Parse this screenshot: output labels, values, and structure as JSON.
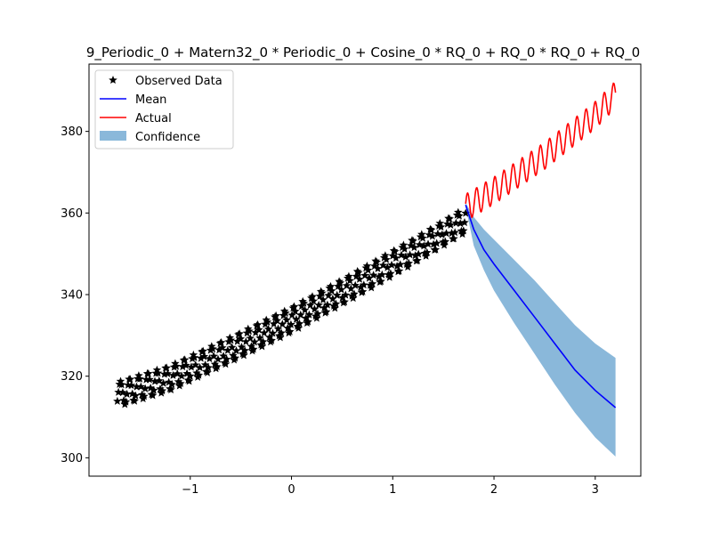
{
  "chart_data": {
    "type": "line",
    "title": "9_Periodic_0 + Matern32_0 * Periodic_0 + Cosine_0 * RQ_0 + RQ_0 * RQ_0 + RQ_0",
    "xlabel": "",
    "ylabel": "",
    "xlim": [
      -2.0,
      3.45
    ],
    "ylim": [
      295.5,
      396.5
    ],
    "xticks": [
      -1,
      0,
      1,
      2,
      3
    ],
    "yticks": [
      300,
      320,
      340,
      360,
      380
    ],
    "xtick_labels": [
      "−1",
      "0",
      "1",
      "2",
      "3"
    ],
    "ytick_labels": [
      "300",
      "320",
      "340",
      "360",
      "380"
    ],
    "grid": false,
    "legend": {
      "placement": "upper-left",
      "entries": [
        {
          "label": "Observed Data",
          "marker": "star",
          "color": "#000000"
        },
        {
          "label": "Mean",
          "marker": "line",
          "color": "#0000ff"
        },
        {
          "label": "Actual",
          "marker": "line",
          "color": "#ff0000"
        },
        {
          "label": "Confidence",
          "marker": "patch",
          "color": "#8ab8da"
        }
      ]
    },
    "observed": {
      "name": "Observed Data",
      "x_start": -1.72,
      "x_end": 1.72,
      "n_points": 326,
      "trend_x": [
        -1.72,
        -1.2,
        -0.6,
        0.0,
        0.6,
        1.2,
        1.72
      ],
      "trend_y": [
        315.5,
        319.5,
        326.5,
        333.8,
        342.0,
        350.5,
        358.3
      ],
      "seasonal_amplitude": 3.0,
      "cycles_per_unit": 11.1
    },
    "actual": {
      "name": "Actual",
      "color": "#ff0000",
      "x_start": 1.72,
      "x_end": 3.2,
      "trend_x": [
        1.72,
        2.0,
        2.5,
        3.0,
        3.2
      ],
      "trend_y": [
        361.3,
        365.5,
        374.0,
        384.0,
        389.0
      ],
      "seasonal_amplitude": 3.3,
      "cycles_per_unit": 11.1
    },
    "mean": {
      "name": "Mean",
      "color": "#0000ff",
      "x": [
        1.72,
        1.8,
        1.9,
        2.0,
        2.2,
        2.4,
        2.6,
        2.8,
        3.0,
        3.2
      ],
      "y": [
        362.0,
        356.0,
        351.0,
        347.5,
        341.0,
        334.5,
        328.0,
        321.5,
        316.5,
        312.3
      ]
    },
    "confidence": {
      "name": "Confidence",
      "color": "#8ab8da",
      "x": [
        1.72,
        1.8,
        1.9,
        2.0,
        2.2,
        2.4,
        2.6,
        2.8,
        3.0,
        3.2
      ],
      "upper": [
        362.5,
        359.0,
        356.0,
        353.5,
        348.5,
        343.5,
        338.0,
        332.5,
        328.0,
        324.5
      ],
      "lower": [
        361.5,
        352.0,
        346.0,
        341.0,
        333.0,
        325.5,
        318.0,
        311.0,
        305.0,
        300.3
      ]
    }
  }
}
